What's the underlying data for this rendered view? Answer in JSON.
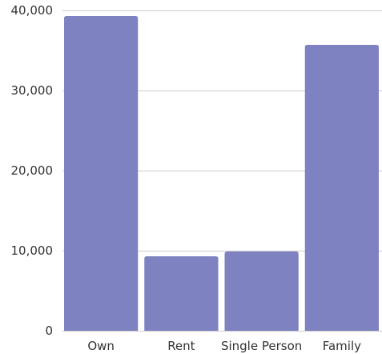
{
  "chart_data": {
    "type": "bar",
    "categories": [
      "Own",
      "Rent",
      "Single Person",
      "Family"
    ],
    "values": [
      39300,
      9300,
      9900,
      35700
    ],
    "ylim": [
      0,
      40000
    ],
    "yticks": [
      0,
      10000,
      20000,
      30000,
      40000
    ],
    "ytick_labels": [
      "0",
      "10,000",
      "20,000",
      "30,000",
      "40,000"
    ],
    "bar_color": "#7f82c0",
    "grid": true,
    "legend": "none"
  }
}
